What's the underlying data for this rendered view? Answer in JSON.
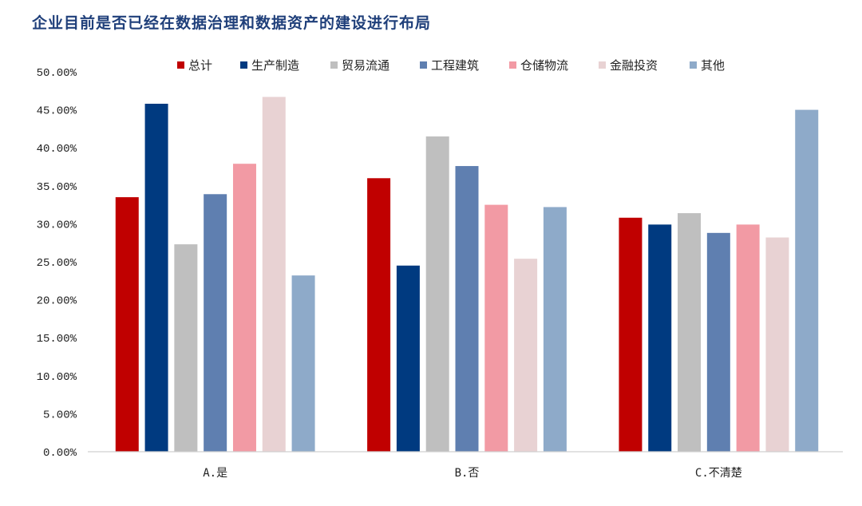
{
  "chart_data": {
    "type": "bar",
    "title": "企业目前是否已经在数据治理和数据资产的建设进行布局",
    "xlabel": "",
    "ylabel": "",
    "categories": [
      "A.是",
      "B.否",
      "C.不清楚"
    ],
    "y_ticks": [
      "0.00%",
      "5.00%",
      "10.00%",
      "15.00%",
      "20.00%",
      "25.00%",
      "30.00%",
      "35.00%",
      "40.00%",
      "45.00%",
      "50.00%"
    ],
    "ylim": [
      0,
      50
    ],
    "grid": false,
    "legend_position": "top",
    "series": [
      {
        "name": "总计",
        "color": "#c00000",
        "values": [
          33.5,
          36.0,
          30.8
        ]
      },
      {
        "name": "生产制造",
        "color": "#003a80",
        "values": [
          45.8,
          24.5,
          29.9
        ]
      },
      {
        "name": "贸易流通",
        "color": "#bfbfbf",
        "values": [
          27.3,
          41.5,
          31.4
        ]
      },
      {
        "name": "工程建筑",
        "color": "#5f7fb0",
        "values": [
          33.9,
          37.6,
          28.8
        ]
      },
      {
        "name": "仓储物流",
        "color": "#f29aa4",
        "values": [
          37.9,
          32.5,
          29.9
        ]
      },
      {
        "name": "金融投资",
        "color": "#e8d2d3",
        "values": [
          46.7,
          25.4,
          28.2
        ]
      },
      {
        "name": "其他",
        "color": "#8eaac9",
        "values": [
          23.2,
          32.2,
          45.0
        ]
      }
    ]
  }
}
